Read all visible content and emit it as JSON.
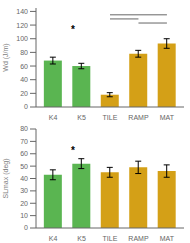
{
  "chart_data": [
    {
      "type": "bar",
      "categories": [
        "K4",
        "K5",
        "TILE",
        "RAMP",
        "MAT"
      ],
      "values": [
        68,
        60,
        18,
        78,
        93
      ],
      "errors": [
        5,
        4,
        3,
        5,
        7
      ],
      "colors": [
        "#5ab551",
        "#5ab551",
        "#d4a017",
        "#d4a017",
        "#d4a017"
      ],
      "ylabel": "Wd (J/m)",
      "ylim": [
        0,
        145
      ],
      "yticks": [
        0,
        20,
        40,
        60,
        80,
        100,
        120,
        140
      ],
      "annotations": [
        {
          "text": "*",
          "x": 0.7,
          "y": 108
        }
      ],
      "sig_lines": [
        {
          "from": "TILE",
          "to": "MAT",
          "y": 135
        },
        {
          "from": "TILE",
          "to": "RAMP",
          "y": 129
        },
        {
          "from": "RAMP",
          "to": "MAT",
          "y": 123
        }
      ]
    },
    {
      "type": "bar",
      "categories": [
        "K4",
        "K5",
        "TILE",
        "RAMP",
        "MAT"
      ],
      "values": [
        43,
        52,
        45,
        49,
        46
      ],
      "errors": [
        4,
        4,
        4,
        5,
        5
      ],
      "colors": [
        "#5ab551",
        "#5ab551",
        "#d4a017",
        "#d4a017",
        "#d4a017"
      ],
      "ylabel": "SLmax (deg)",
      "ylim": [
        0,
        80
      ],
      "yticks": [
        0,
        10,
        20,
        30,
        40,
        50,
        60,
        70,
        80
      ],
      "annotations": [
        {
          "text": "*",
          "x": 0.7,
          "y": 60
        }
      ]
    }
  ]
}
